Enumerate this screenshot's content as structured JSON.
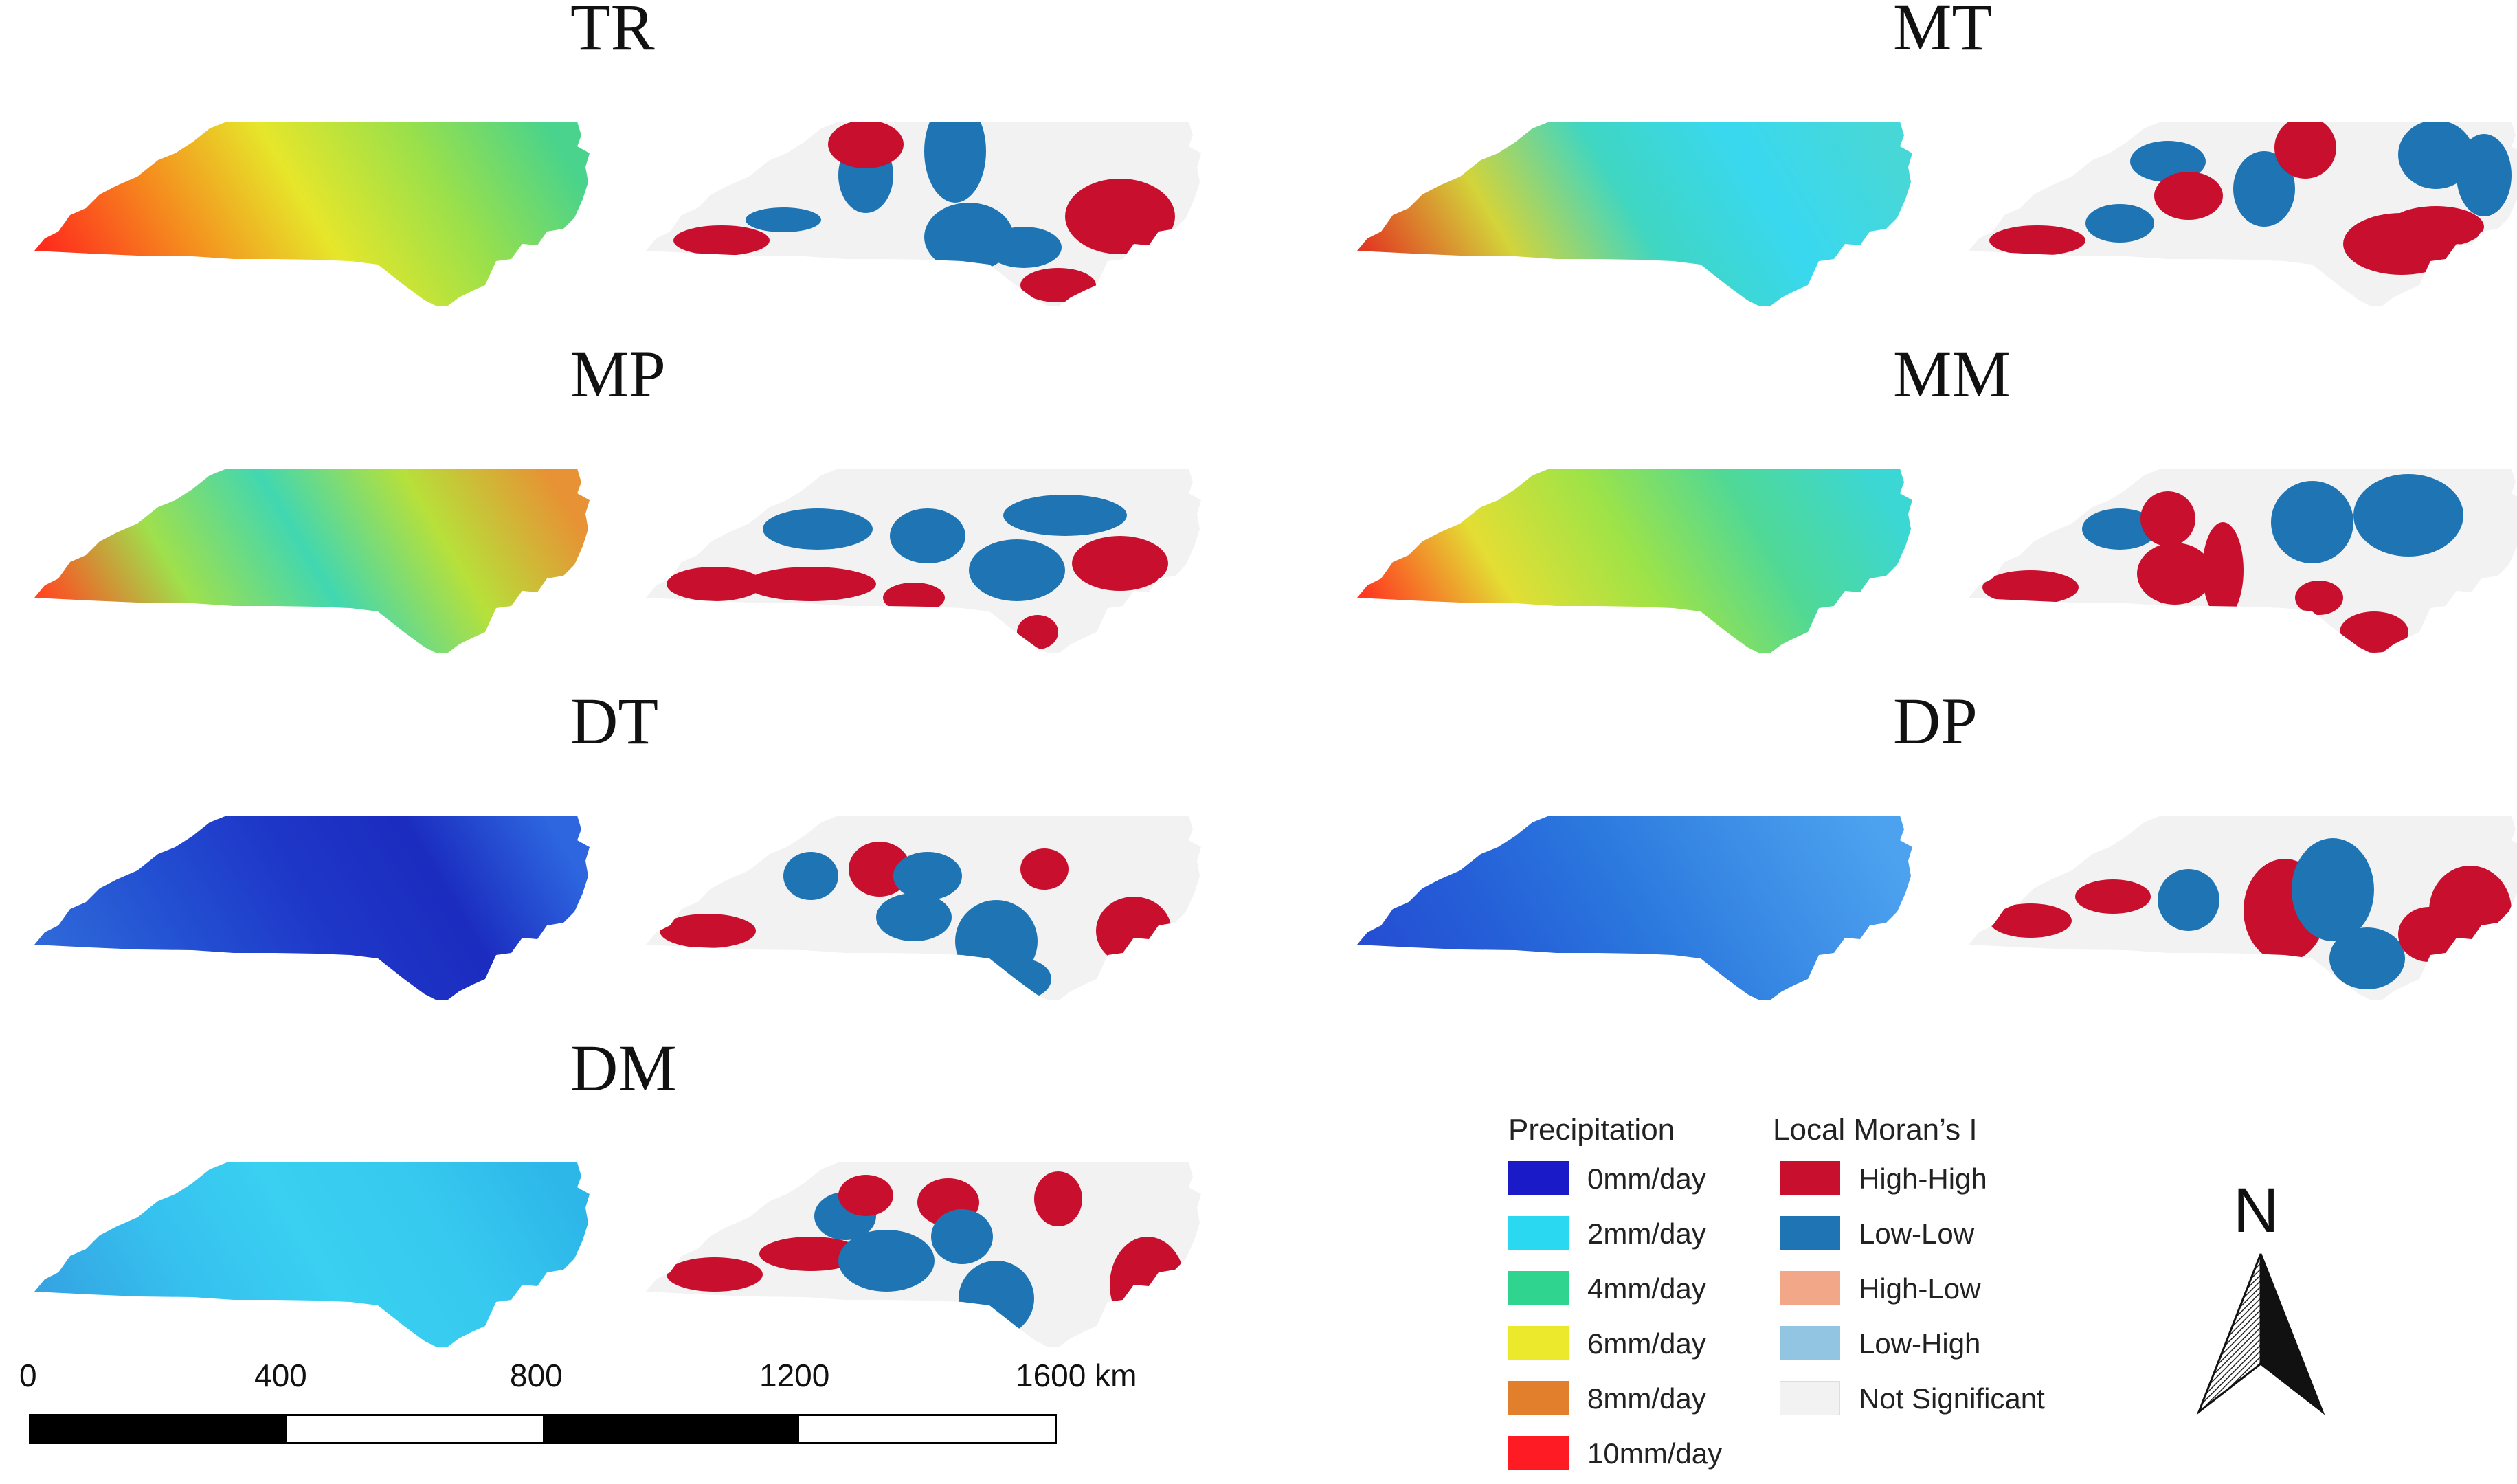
{
  "panels": [
    {
      "title": "TR",
      "gradient": [
        "#ff2b1d",
        "#f58b1e",
        "#e6e62a",
        "#9be04a",
        "#49d38c"
      ]
    },
    {
      "title": "MT",
      "gradient": [
        "#e23a22",
        "#d3d43a",
        "#3fd6c2",
        "#39d8f0",
        "#47d7d7"
      ]
    },
    {
      "title": "MP",
      "gradient": [
        "#ff4a21",
        "#9fe04c",
        "#41d7b1",
        "#b7e03a",
        "#e79234"
      ]
    },
    {
      "title": "MM",
      "gradient": [
        "#ff3a20",
        "#e3de34",
        "#9ee347",
        "#4fd897",
        "#3bd7d4"
      ]
    },
    {
      "title": "DT",
      "gradient": [
        "#2f69d9",
        "#2350d2",
        "#1e37c8",
        "#1b2cbf",
        "#2d66df"
      ]
    },
    {
      "title": "DP",
      "gradient": [
        "#254ed2",
        "#2560d8",
        "#2b78de",
        "#3c8ee6",
        "#4da2ef"
      ]
    },
    {
      "title": "DM",
      "gradient": [
        "#34a4e3",
        "#36c0ee",
        "#39d0f1",
        "#37c9ef",
        "#2db7e9"
      ]
    }
  ],
  "legend": {
    "precipitation": {
      "title": "Precipitation",
      "items": [
        {
          "label": "0mm/day",
          "color": "#1a1ac8"
        },
        {
          "label": "2mm/day",
          "color": "#2bd8f2"
        },
        {
          "label": "4mm/day",
          "color": "#2fd58e"
        },
        {
          "label": "6mm/day",
          "color": "#ece82c"
        },
        {
          "label": "8mm/day",
          "color": "#e17f2d"
        },
        {
          "label": "10mm/day",
          "color": "#ff1b23"
        }
      ]
    },
    "morans": {
      "title": "Local Moran’s I",
      "items": [
        {
          "label": "High-High",
          "color": "#c8102e"
        },
        {
          "label": "Low-Low",
          "color": "#1f75b4"
        },
        {
          "label": "High-Low",
          "color": "#f3a789"
        },
        {
          "label": "Low-High",
          "color": "#92c5e2"
        },
        {
          "label": "Not Significant",
          "color": "#f2f2f2"
        }
      ]
    }
  },
  "scale_bar": {
    "labels": [
      "0",
      "400",
      "800",
      "1200",
      "1600 km"
    ]
  },
  "north_arrow": {
    "label": "N"
  },
  "colors": {
    "high_high": "#c8102e",
    "low_low": "#1f75b4",
    "not_significant": "#f2f2f2"
  }
}
